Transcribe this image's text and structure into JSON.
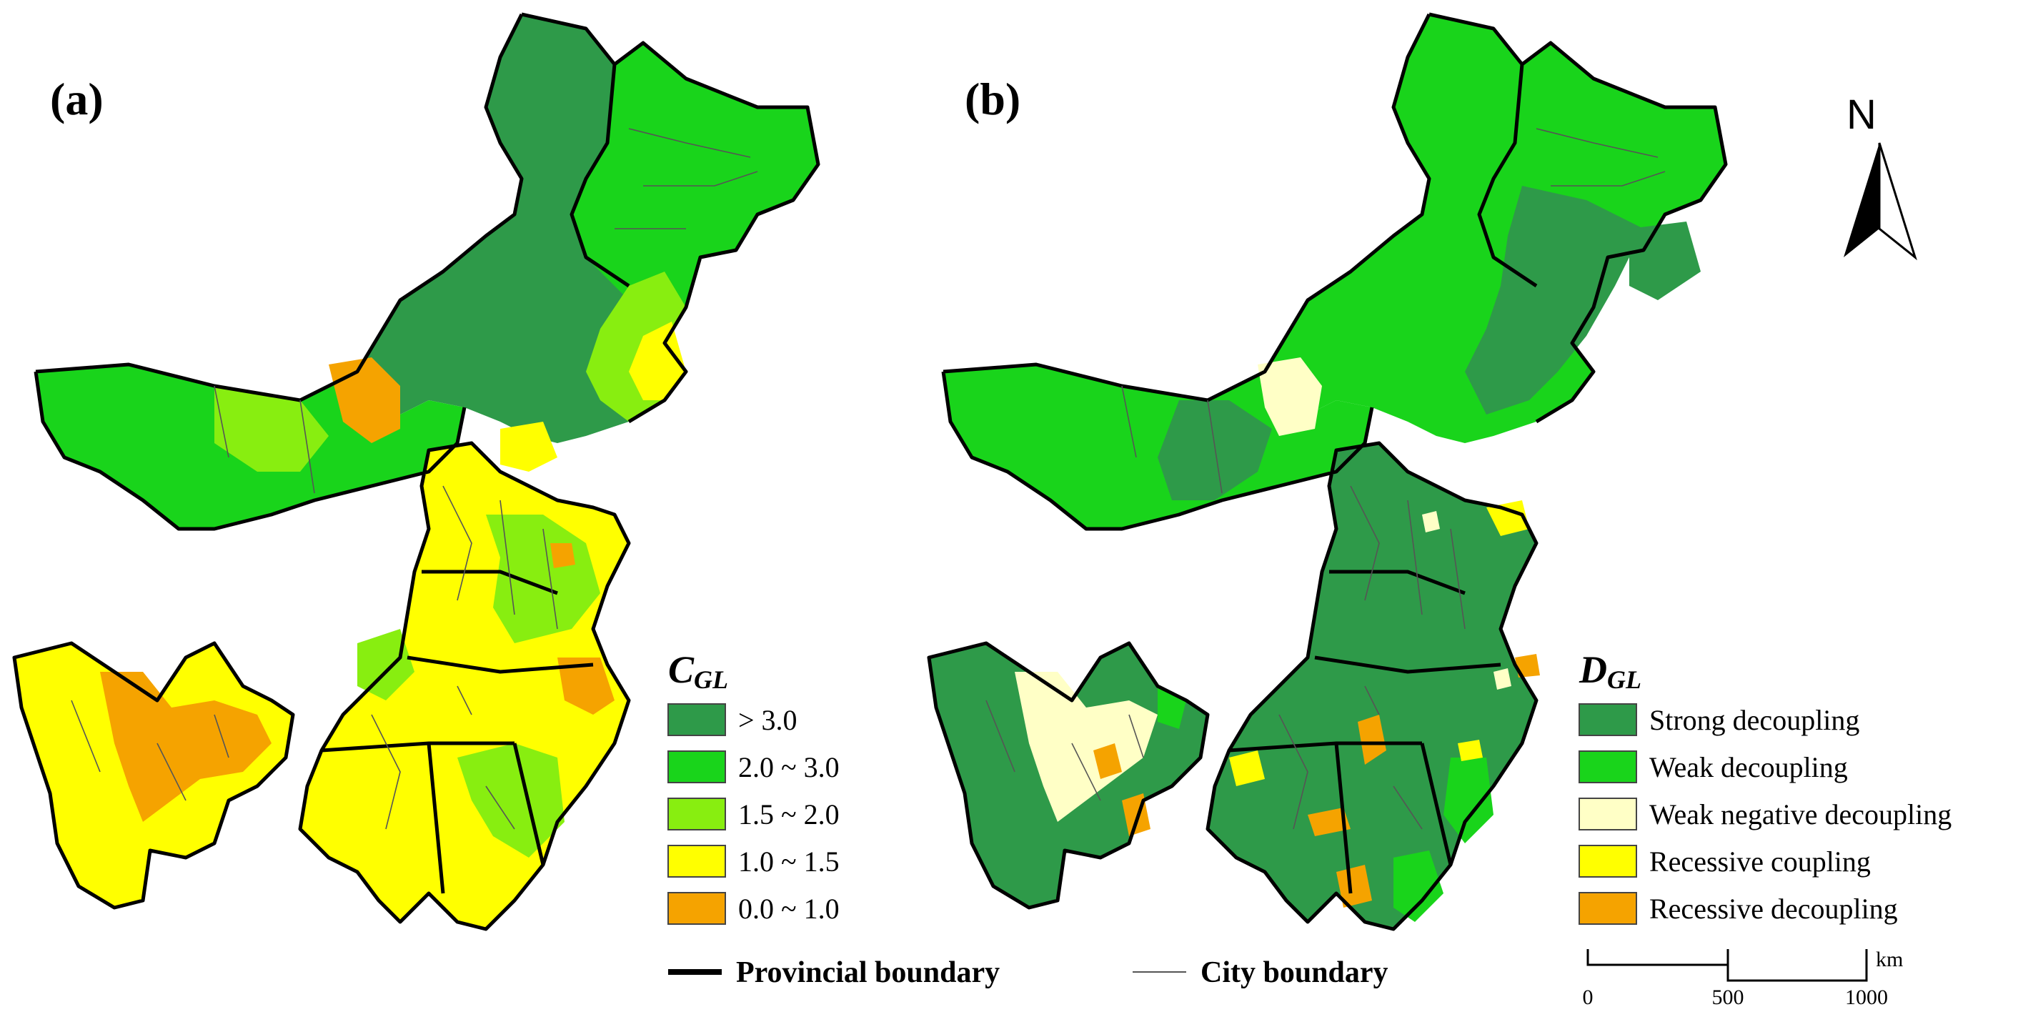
{
  "panels": {
    "a": {
      "label": "(a)"
    },
    "b": {
      "label": "(b)"
    }
  },
  "legend_a": {
    "title_main": "C",
    "title_sub": "GL",
    "items": [
      {
        "label": "> 3.0",
        "color": "#2e9a49"
      },
      {
        "label": "2.0 ~ 3.0",
        "color": "#19d41b"
      },
      {
        "label": "1.5 ~ 2.0",
        "color": "#88ee10"
      },
      {
        "label": "1.0 ~ 1.5",
        "color": "#ffff00"
      },
      {
        "label": "0.0 ~ 1.0",
        "color": "#f5a300"
      }
    ]
  },
  "legend_b": {
    "title_main": "D",
    "title_sub": "GL",
    "items": [
      {
        "label": "Strong decoupling",
        "color": "#2e9a49"
      },
      {
        "label": "Weak decoupling",
        "color": "#19d41b"
      },
      {
        "label": "Weak negative decoupling",
        "color": "#ffffc6"
      },
      {
        "label": "Recessive coupling",
        "color": "#ffff00"
      },
      {
        "label": "Recessive decoupling",
        "color": "#f5a300"
      }
    ]
  },
  "boundary_legend": {
    "provincial": "Provincial boundary",
    "city": "City boundary"
  },
  "north_arrow": {
    "label": "N"
  },
  "scale_bar": {
    "ticks": [
      "0",
      "500",
      "1000"
    ],
    "unit": "km"
  }
}
